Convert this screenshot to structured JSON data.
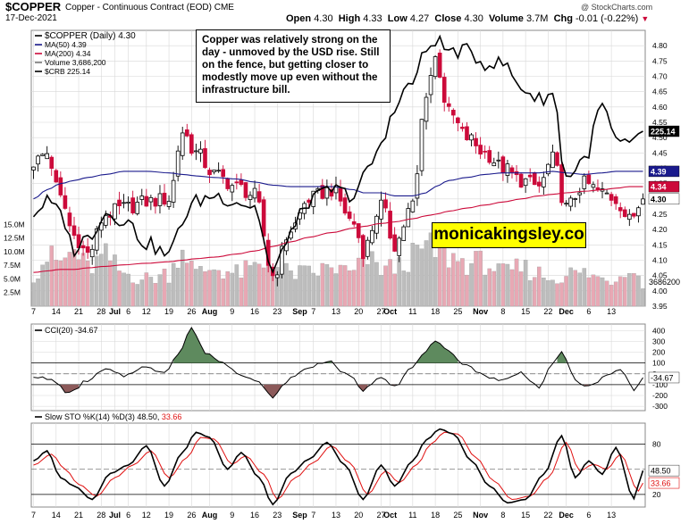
{
  "header": {
    "symbol": "$COPPER",
    "name": "Copper - Continuous Contract (EOD)",
    "exchange": "CME",
    "date": "17-Dec-2021",
    "attribution": "@ StockCharts.com",
    "quote": {
      "open_label": "Open",
      "open": "4.30",
      "high_label": "High",
      "high": "4.33",
      "low_label": "Low",
      "low": "4.27",
      "close_label": "Close",
      "close": "4.30",
      "volume_label": "Volume",
      "volume": "3.7M",
      "chg_label": "Chg",
      "chg": "-0.01 (-0.22%)"
    }
  },
  "annotation": "Copper was relatively strong on the day - unmoved by the USD rise. Still on the fence, but getting closer to modestly move up even without the infrastructure bill.",
  "watermark": "monicakingsley.co",
  "colors": {
    "up": "#000000",
    "down": "#cc0a3a",
    "ma50": "#1a1a8c",
    "ma200": "#cc0a3a",
    "vol_up": "#bdbdbd",
    "vol_down": "#e8a8b4",
    "cci_pos": "#5e8a5e",
    "cci_neg": "#8c5a5a",
    "sto_k": "#000000",
    "sto_d": "#e01010",
    "grid": "#d8d8d8"
  },
  "chart_data": [
    {
      "type": "candlestick",
      "panel": "price",
      "legend": {
        "symbol_label": "$COPPER (Daily) 4.30",
        "ma50_label": "MA(50) 4.39",
        "ma200_label": "MA(200) 4.34",
        "volume_label": "Volume 3,686,200",
        "crb_label": "$CRB 225.14"
      },
      "ylim": [
        3.95,
        4.85
      ],
      "yticks": [
        "4.80",
        "4.75",
        "4.70",
        "4.65",
        "4.60",
        "4.55",
        "4.50",
        "4.45",
        "4.40",
        "4.35",
        "4.30",
        "4.25",
        "4.20",
        "4.15",
        "4.10",
        "4.05",
        "4.00",
        "3.95"
      ],
      "volume_ticks": [
        "15.0M",
        "12.5M",
        "10.0M",
        "7.5M",
        "5.0M",
        "2.5M"
      ],
      "volume_max_m": 17.5,
      "last_labels": {
        "close": "4.30",
        "ma50": "4.39",
        "ma200": "4.34",
        "crb": "225.14",
        "volume": "3686200"
      },
      "crb_range": [
        200,
        240
      ],
      "x_labels": [
        "7",
        "14",
        "21",
        "28",
        "Jul",
        "6",
        "12",
        "19",
        "26",
        "Aug",
        "9",
        "16",
        "23",
        "Sep",
        "7",
        "13",
        "20",
        "27",
        "Oct",
        "11",
        "18",
        "25",
        "Nov",
        "8",
        "15",
        "22",
        "Dec",
        "6",
        "13"
      ],
      "x_label_day": [
        0,
        5,
        10,
        15,
        18,
        21,
        25,
        30,
        35,
        39,
        44,
        49,
        54,
        59,
        62,
        67,
        72,
        77,
        79,
        84,
        89,
        94,
        99,
        104,
        109,
        114,
        118,
        123,
        128
      ],
      "x_label_bold": [
        "Jul",
        "Aug",
        "Sep",
        "Oct",
        "Nov",
        "Dec"
      ],
      "day_count": 136,
      "pivots": [
        {
          "d": 0,
          "c": 4.42,
          "m50": 4.3,
          "m200": 4.06,
          "v": 6,
          "crb": 211
        },
        {
          "d": 3,
          "c": 4.45,
          "m50": 4.33,
          "m200": 4.065,
          "v": 9,
          "crb": 213
        },
        {
          "d": 6,
          "c": 4.3,
          "m50": 4.35,
          "m200": 4.07,
          "v": 8,
          "crb": 211
        },
        {
          "d": 9,
          "c": 4.18,
          "m50": 4.36,
          "m200": 4.07,
          "v": 10,
          "crb": 205
        },
        {
          "d": 12,
          "c": 4.12,
          "m50": 4.37,
          "m200": 4.075,
          "v": 7,
          "crb": 207
        },
        {
          "d": 16,
          "c": 4.25,
          "m50": 4.38,
          "m200": 4.08,
          "v": 9,
          "crb": 211
        },
        {
          "d": 20,
          "c": 4.27,
          "m50": 4.39,
          "m200": 4.085,
          "v": 6,
          "crb": 210
        },
        {
          "d": 25,
          "c": 4.29,
          "m50": 4.39,
          "m200": 4.09,
          "v": 5,
          "crb": 206
        },
        {
          "d": 30,
          "c": 4.3,
          "m50": 4.385,
          "m200": 4.095,
          "v": 6,
          "crb": 204
        },
        {
          "d": 33,
          "c": 4.52,
          "m50": 4.38,
          "m200": 4.1,
          "v": 11,
          "crb": 210
        },
        {
          "d": 36,
          "c": 4.45,
          "m50": 4.375,
          "m200": 4.105,
          "v": 6,
          "crb": 213
        },
        {
          "d": 40,
          "c": 4.38,
          "m50": 4.37,
          "m200": 4.11,
          "v": 7,
          "crb": 214
        },
        {
          "d": 45,
          "c": 4.34,
          "m50": 4.365,
          "m200": 4.12,
          "v": 6,
          "crb": 213
        },
        {
          "d": 49,
          "c": 4.31,
          "m50": 4.355,
          "m200": 4.13,
          "v": 7,
          "crb": 212
        },
        {
          "d": 53,
          "c": 4.05,
          "m50": 4.345,
          "m200": 4.145,
          "v": 8,
          "crb": 201
        },
        {
          "d": 57,
          "c": 4.2,
          "m50": 4.34,
          "m200": 4.16,
          "v": 6,
          "crb": 208
        },
        {
          "d": 61,
          "c": 4.3,
          "m50": 4.34,
          "m200": 4.175,
          "v": 6,
          "crb": 213
        },
        {
          "d": 66,
          "c": 4.33,
          "m50": 4.34,
          "m200": 4.19,
          "v": 7,
          "crb": 215
        },
        {
          "d": 71,
          "c": 4.22,
          "m50": 4.33,
          "m200": 4.205,
          "v": 6,
          "crb": 214
        },
        {
          "d": 73,
          "c": 4.13,
          "m50": 4.32,
          "m200": 4.21,
          "v": 9,
          "crb": 217
        },
        {
          "d": 77,
          "c": 4.28,
          "m50": 4.32,
          "m200": 4.22,
          "v": 7,
          "crb": 222
        },
        {
          "d": 80,
          "c": 4.15,
          "m50": 4.31,
          "m200": 4.225,
          "v": 7,
          "crb": 229
        },
        {
          "d": 84,
          "c": 4.28,
          "m50": 4.31,
          "m200": 4.235,
          "v": 9,
          "crb": 233
        },
        {
          "d": 87,
          "c": 4.65,
          "m50": 4.32,
          "m200": 4.245,
          "v": 11,
          "crb": 238
        },
        {
          "d": 89,
          "c": 4.76,
          "m50": 4.34,
          "m200": 4.25,
          "v": 10,
          "crb": 240
        },
        {
          "d": 92,
          "c": 4.58,
          "m50": 4.36,
          "m200": 4.26,
          "v": 9,
          "crb": 238
        },
        {
          "d": 96,
          "c": 4.5,
          "m50": 4.37,
          "m200": 4.27,
          "v": 8,
          "crb": 238
        },
        {
          "d": 100,
          "c": 4.45,
          "m50": 4.38,
          "m200": 4.28,
          "v": 8,
          "crb": 236
        },
        {
          "d": 104,
          "c": 4.4,
          "m50": 4.385,
          "m200": 4.29,
          "v": 6,
          "crb": 236
        },
        {
          "d": 108,
          "c": 4.36,
          "m50": 4.385,
          "m200": 4.3,
          "v": 7,
          "crb": 232
        },
        {
          "d": 112,
          "c": 4.34,
          "m50": 4.385,
          "m200": 4.31,
          "v": 6,
          "crb": 230
        },
        {
          "d": 115,
          "c": 4.43,
          "m50": 4.39,
          "m200": 4.315,
          "v": 5,
          "crb": 231
        },
        {
          "d": 118,
          "c": 4.27,
          "m50": 4.385,
          "m200": 4.32,
          "v": 6,
          "crb": 217
        },
        {
          "d": 122,
          "c": 4.35,
          "m50": 4.38,
          "m200": 4.325,
          "v": 6,
          "crb": 220
        },
        {
          "d": 126,
          "c": 4.32,
          "m50": 4.385,
          "m200": 4.33,
          "v": 5,
          "crb": 229
        },
        {
          "d": 129,
          "c": 4.3,
          "m50": 4.39,
          "m200": 4.335,
          "v": 5,
          "crb": 223
        },
        {
          "d": 132,
          "c": 4.23,
          "m50": 4.39,
          "m200": 4.34,
          "v": 8,
          "crb": 222
        },
        {
          "d": 135,
          "c": 4.3,
          "m50": 4.39,
          "m200": 4.34,
          "v": 4,
          "crb": 225
        }
      ]
    },
    {
      "type": "area",
      "panel": "cci",
      "label": "CCI(20) -34.67",
      "ylim": [
        -340,
        460
      ],
      "yticks": [
        400,
        300,
        200,
        100,
        0,
        -100,
        -200,
        -300
      ],
      "reference_lines": [
        100,
        -100
      ],
      "last_value": "-34.67",
      "pivots": [
        {
          "d": 0,
          "v": -20
        },
        {
          "d": 4,
          "v": -60
        },
        {
          "d": 8,
          "v": -180
        },
        {
          "d": 12,
          "v": -60
        },
        {
          "d": 16,
          "v": 40
        },
        {
          "d": 20,
          "v": -20
        },
        {
          "d": 24,
          "v": 60
        },
        {
          "d": 29,
          "v": 20
        },
        {
          "d": 32,
          "v": 180
        },
        {
          "d": 35,
          "v": 420
        },
        {
          "d": 38,
          "v": 200
        },
        {
          "d": 42,
          "v": 100
        },
        {
          "d": 46,
          "v": 0
        },
        {
          "d": 49,
          "v": -60
        },
        {
          "d": 53,
          "v": -210
        },
        {
          "d": 57,
          "v": -40
        },
        {
          "d": 61,
          "v": 60
        },
        {
          "d": 65,
          "v": 120
        },
        {
          "d": 70,
          "v": -20
        },
        {
          "d": 73,
          "v": -150
        },
        {
          "d": 77,
          "v": -20
        },
        {
          "d": 80,
          "v": -110
        },
        {
          "d": 84,
          "v": 60
        },
        {
          "d": 87,
          "v": 220
        },
        {
          "d": 89,
          "v": 290
        },
        {
          "d": 92,
          "v": 200
        },
        {
          "d": 96,
          "v": 80
        },
        {
          "d": 100,
          "v": -20
        },
        {
          "d": 104,
          "v": -60
        },
        {
          "d": 108,
          "v": 10
        },
        {
          "d": 112,
          "v": -120
        },
        {
          "d": 115,
          "v": 80
        },
        {
          "d": 117,
          "v": 210
        },
        {
          "d": 120,
          "v": -60
        },
        {
          "d": 123,
          "v": -120
        },
        {
          "d": 127,
          "v": -20
        },
        {
          "d": 130,
          "v": 40
        },
        {
          "d": 133,
          "v": -140
        },
        {
          "d": 135,
          "v": -35
        }
      ]
    },
    {
      "type": "line",
      "panel": "stochastic",
      "label_prefix": "Slow STO %K(14) %D(3)",
      "label_k": "48.50",
      "label_d": "33.66",
      "ylim": [
        5,
        105
      ],
      "yticks": [
        80,
        50,
        20
      ],
      "reference_lines": [
        80,
        20
      ],
      "series": [
        {
          "name": "%K",
          "pivots": [
            {
              "d": 0,
              "v": 60
            },
            {
              "d": 3,
              "v": 72
            },
            {
              "d": 6,
              "v": 40
            },
            {
              "d": 9,
              "v": 30
            },
            {
              "d": 13,
              "v": 14
            },
            {
              "d": 17,
              "v": 45
            },
            {
              "d": 21,
              "v": 55
            },
            {
              "d": 25,
              "v": 78
            },
            {
              "d": 29,
              "v": 30
            },
            {
              "d": 33,
              "v": 70
            },
            {
              "d": 36,
              "v": 94
            },
            {
              "d": 39,
              "v": 88
            },
            {
              "d": 43,
              "v": 50
            },
            {
              "d": 46,
              "v": 70
            },
            {
              "d": 50,
              "v": 40
            },
            {
              "d": 53,
              "v": 8
            },
            {
              "d": 57,
              "v": 45
            },
            {
              "d": 61,
              "v": 62
            },
            {
              "d": 65,
              "v": 82
            },
            {
              "d": 69,
              "v": 55
            },
            {
              "d": 73,
              "v": 14
            },
            {
              "d": 77,
              "v": 55
            },
            {
              "d": 80,
              "v": 30
            },
            {
              "d": 84,
              "v": 60
            },
            {
              "d": 87,
              "v": 85
            },
            {
              "d": 90,
              "v": 98
            },
            {
              "d": 93,
              "v": 92
            },
            {
              "d": 97,
              "v": 60
            },
            {
              "d": 101,
              "v": 30
            },
            {
              "d": 105,
              "v": 10
            },
            {
              "d": 109,
              "v": 14
            },
            {
              "d": 113,
              "v": 44
            },
            {
              "d": 117,
              "v": 90
            },
            {
              "d": 120,
              "v": 40
            },
            {
              "d": 123,
              "v": 60
            },
            {
              "d": 126,
              "v": 44
            },
            {
              "d": 129,
              "v": 76
            },
            {
              "d": 133,
              "v": 15
            },
            {
              "d": 135,
              "v": 48.5
            }
          ]
        },
        {
          "name": "%D",
          "pivots": [
            {
              "d": 0,
              "v": 55
            },
            {
              "d": 4,
              "v": 68
            },
            {
              "d": 7,
              "v": 50
            },
            {
              "d": 10,
              "v": 32
            },
            {
              "d": 14,
              "v": 18
            },
            {
              "d": 18,
              "v": 40
            },
            {
              "d": 22,
              "v": 55
            },
            {
              "d": 26,
              "v": 72
            },
            {
              "d": 30,
              "v": 40
            },
            {
              "d": 34,
              "v": 64
            },
            {
              "d": 37,
              "v": 88
            },
            {
              "d": 40,
              "v": 86
            },
            {
              "d": 44,
              "v": 56
            },
            {
              "d": 47,
              "v": 66
            },
            {
              "d": 51,
              "v": 44
            },
            {
              "d": 54,
              "v": 14
            },
            {
              "d": 58,
              "v": 40
            },
            {
              "d": 62,
              "v": 58
            },
            {
              "d": 66,
              "v": 78
            },
            {
              "d": 70,
              "v": 58
            },
            {
              "d": 74,
              "v": 20
            },
            {
              "d": 78,
              "v": 48
            },
            {
              "d": 81,
              "v": 34
            },
            {
              "d": 85,
              "v": 56
            },
            {
              "d": 88,
              "v": 80
            },
            {
              "d": 91,
              "v": 94
            },
            {
              "d": 94,
              "v": 92
            },
            {
              "d": 98,
              "v": 64
            },
            {
              "d": 102,
              "v": 36
            },
            {
              "d": 106,
              "v": 14
            },
            {
              "d": 110,
              "v": 18
            },
            {
              "d": 114,
              "v": 40
            },
            {
              "d": 118,
              "v": 82
            },
            {
              "d": 121,
              "v": 48
            },
            {
              "d": 124,
              "v": 56
            },
            {
              "d": 127,
              "v": 50
            },
            {
              "d": 130,
              "v": 68
            },
            {
              "d": 134,
              "v": 24
            },
            {
              "d": 135,
              "v": 33.66
            }
          ]
        }
      ]
    }
  ]
}
